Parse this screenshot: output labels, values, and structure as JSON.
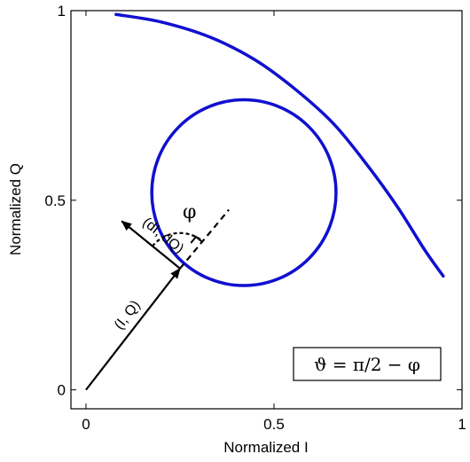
{
  "chart_data": {
    "type": "line",
    "title": "",
    "xlabel": "Normalized I",
    "ylabel": "Normalized Q",
    "xlim": [
      -0.04,
      1.0
    ],
    "ylim": [
      -0.05,
      1.0
    ],
    "xticks": [
      0,
      0.5,
      1
    ],
    "xtick_labels": [
      "0",
      "0.5",
      "1"
    ],
    "yticks": [
      0,
      0.5,
      1
    ],
    "ytick_labels": [
      "0",
      "0.5",
      "1"
    ],
    "grid": false,
    "series": [
      {
        "name": "",
        "color": "#1010d0",
        "x": [
          0.08,
          0.2,
          0.33,
          0.45,
          0.56,
          0.66,
          0.75,
          0.83,
          0.9,
          0.95
        ],
        "y": [
          0.99,
          0.97,
          0.93,
          0.87,
          0.79,
          0.7,
          0.59,
          0.48,
          0.37,
          0.3
        ]
      },
      {
        "name": "",
        "color": "#1010d0",
        "circle": {
          "cx": 0.42,
          "cy": 0.52,
          "r": 0.245
        }
      }
    ],
    "annotations": {
      "vector_iq": {
        "label": "(I, Q)",
        "from": [
          0,
          0
        ],
        "to": [
          0.25,
          0.32
        ]
      },
      "vector_diq": {
        "label": "(dI, dQ)",
        "from": [
          0.25,
          0.32
        ],
        "to": [
          0.095,
          0.445
        ]
      },
      "dashed_line": {
        "from": [
          0.25,
          0.32
        ],
        "to": [
          0.38,
          0.475
        ]
      },
      "angle_label": "φ",
      "formula": "ϑ = π/2 − φ"
    }
  }
}
